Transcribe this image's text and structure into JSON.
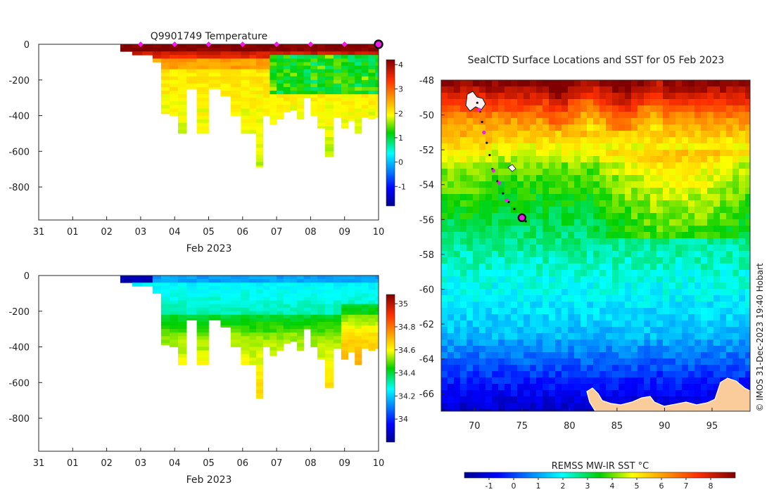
{
  "chart_data": [
    {
      "type": "heatmap",
      "id": "temp",
      "title": "Q9901749  Temperature",
      "xlabel": "Feb 2023",
      "ylabel": "",
      "xticks": [
        "31",
        "01",
        "02",
        "03",
        "04",
        "05",
        "06",
        "07",
        "08",
        "09",
        "10"
      ],
      "xlim": [
        0,
        10
      ],
      "yticks": [
        "0",
        "-200",
        "-400",
        "-600",
        "-800"
      ],
      "ylim": [
        -985,
        0
      ],
      "colorbar": {
        "ticks": [
          "4",
          "3",
          "2",
          "1",
          "0",
          "-1"
        ],
        "range": [
          -1.8,
          4.2
        ]
      },
      "markers_days": [
        3,
        4,
        5,
        6,
        7,
        8,
        9
      ],
      "last_marker_day": 10,
      "profiles": [
        {
          "t": 2.4,
          "d": 40
        },
        {
          "t": 2.6,
          "d": 40
        },
        {
          "t": 2.9,
          "d": 60
        },
        {
          "t": 3.2,
          "d": 60
        },
        {
          "t": 3.5,
          "d": 100
        },
        {
          "t": 3.7,
          "d": 390
        },
        {
          "t": 4.0,
          "d": 400
        },
        {
          "t": 4.2,
          "d": 500
        },
        {
          "t": 4.5,
          "d": 250
        },
        {
          "t": 4.8,
          "d": 500
        },
        {
          "t": 5.2,
          "d": 250
        },
        {
          "t": 5.5,
          "d": 290
        },
        {
          "t": 5.8,
          "d": 400
        },
        {
          "t": 6.1,
          "d": 500
        },
        {
          "t": 6.3,
          "d": 500
        },
        {
          "t": 6.5,
          "d": 690
        },
        {
          "t": 6.7,
          "d": 400
        },
        {
          "t": 6.9,
          "d": 450
        },
        {
          "t": 7.1,
          "d": 420
        },
        {
          "t": 7.3,
          "d": 380
        },
        {
          "t": 7.5,
          "d": 370
        },
        {
          "t": 7.7,
          "d": 420
        },
        {
          "t": 7.9,
          "d": 300
        },
        {
          "t": 8.1,
          "d": 400
        },
        {
          "t": 8.3,
          "d": 470
        },
        {
          "t": 8.55,
          "d": 630
        },
        {
          "t": 8.8,
          "d": 410
        },
        {
          "t": 9.0,
          "d": 470
        },
        {
          "t": 9.2,
          "d": 430
        },
        {
          "t": 9.4,
          "d": 500
        },
        {
          "t": 9.6,
          "d": 410
        },
        {
          "t": 9.8,
          "d": 420
        },
        {
          "t": 10.0,
          "d": 410
        }
      ]
    },
    {
      "type": "heatmap",
      "id": "sal",
      "title": "",
      "xlabel": "Feb 2023",
      "xticks": [
        "31",
        "01",
        "02",
        "03",
        "04",
        "05",
        "06",
        "07",
        "08",
        "09",
        "10"
      ],
      "xlim": [
        0,
        10
      ],
      "yticks": [
        "0",
        "-200",
        "-400",
        "-600",
        "-800"
      ],
      "ylim": [
        -985,
        0
      ],
      "colorbar": {
        "ticks": [
          "35",
          "34.8",
          "34.6",
          "34.4",
          "34.2",
          "34"
        ],
        "range": [
          33.8,
          35.08
        ]
      }
    },
    {
      "type": "heatmap",
      "id": "map",
      "title": "SealCTD Surface Locations and SST for 05 Feb 2023",
      "xticks": [
        "70",
        "75",
        "80",
        "85",
        "90",
        "95"
      ],
      "xlim": [
        66.5,
        99
      ],
      "yticks": [
        "-48",
        "-50",
        "-52",
        "-54",
        "-56",
        "-58",
        "-60",
        "-62",
        "-64",
        "-66"
      ],
      "ylim": [
        -67,
        -48
      ],
      "colorbar_title": "REMSS MW-IR SST °C",
      "colorbar_ticks": [
        "-1",
        "0",
        "1",
        "2",
        "3",
        "4",
        "5",
        "6",
        "7",
        "8"
      ],
      "colorbar_range": [
        -2,
        9
      ],
      "track": [
        {
          "lon": 70.3,
          "lat": -49.3
        },
        {
          "lon": 70.6,
          "lat": -49.8
        },
        {
          "lon": 70.8,
          "lat": -50.4
        },
        {
          "lon": 71.0,
          "lat": -51.0
        },
        {
          "lon": 71.3,
          "lat": -51.6
        },
        {
          "lon": 71.6,
          "lat": -52.3
        },
        {
          "lon": 71.9,
          "lat": -53.1
        },
        {
          "lon": 72.4,
          "lat": -53.8
        },
        {
          "lon": 73.0,
          "lat": -54.5
        },
        {
          "lon": 73.6,
          "lat": -55.0
        },
        {
          "lon": 74.2,
          "lat": -55.4
        },
        {
          "lon": 74.9,
          "lat": -55.8
        },
        {
          "lon": 75.4,
          "lat": -56.1
        }
      ],
      "track_markers": [
        {
          "lon": 70.5,
          "lat": -49.7
        },
        {
          "lon": 71.0,
          "lat": -51.0
        },
        {
          "lon": 72.0,
          "lat": -53.2
        },
        {
          "lon": 72.6,
          "lat": -53.9
        },
        {
          "lon": 73.4,
          "lat": -54.9
        }
      ],
      "current_position": {
        "lon": 75.0,
        "lat": -55.9
      },
      "island_kerguelen": {
        "lon": 69.7,
        "lat": -49.3
      },
      "island_heard": {
        "lon": 73.5,
        "lat": -53.1
      }
    }
  ],
  "credit": "© IMOS 31-Dec-2023 19:40 Hobart"
}
